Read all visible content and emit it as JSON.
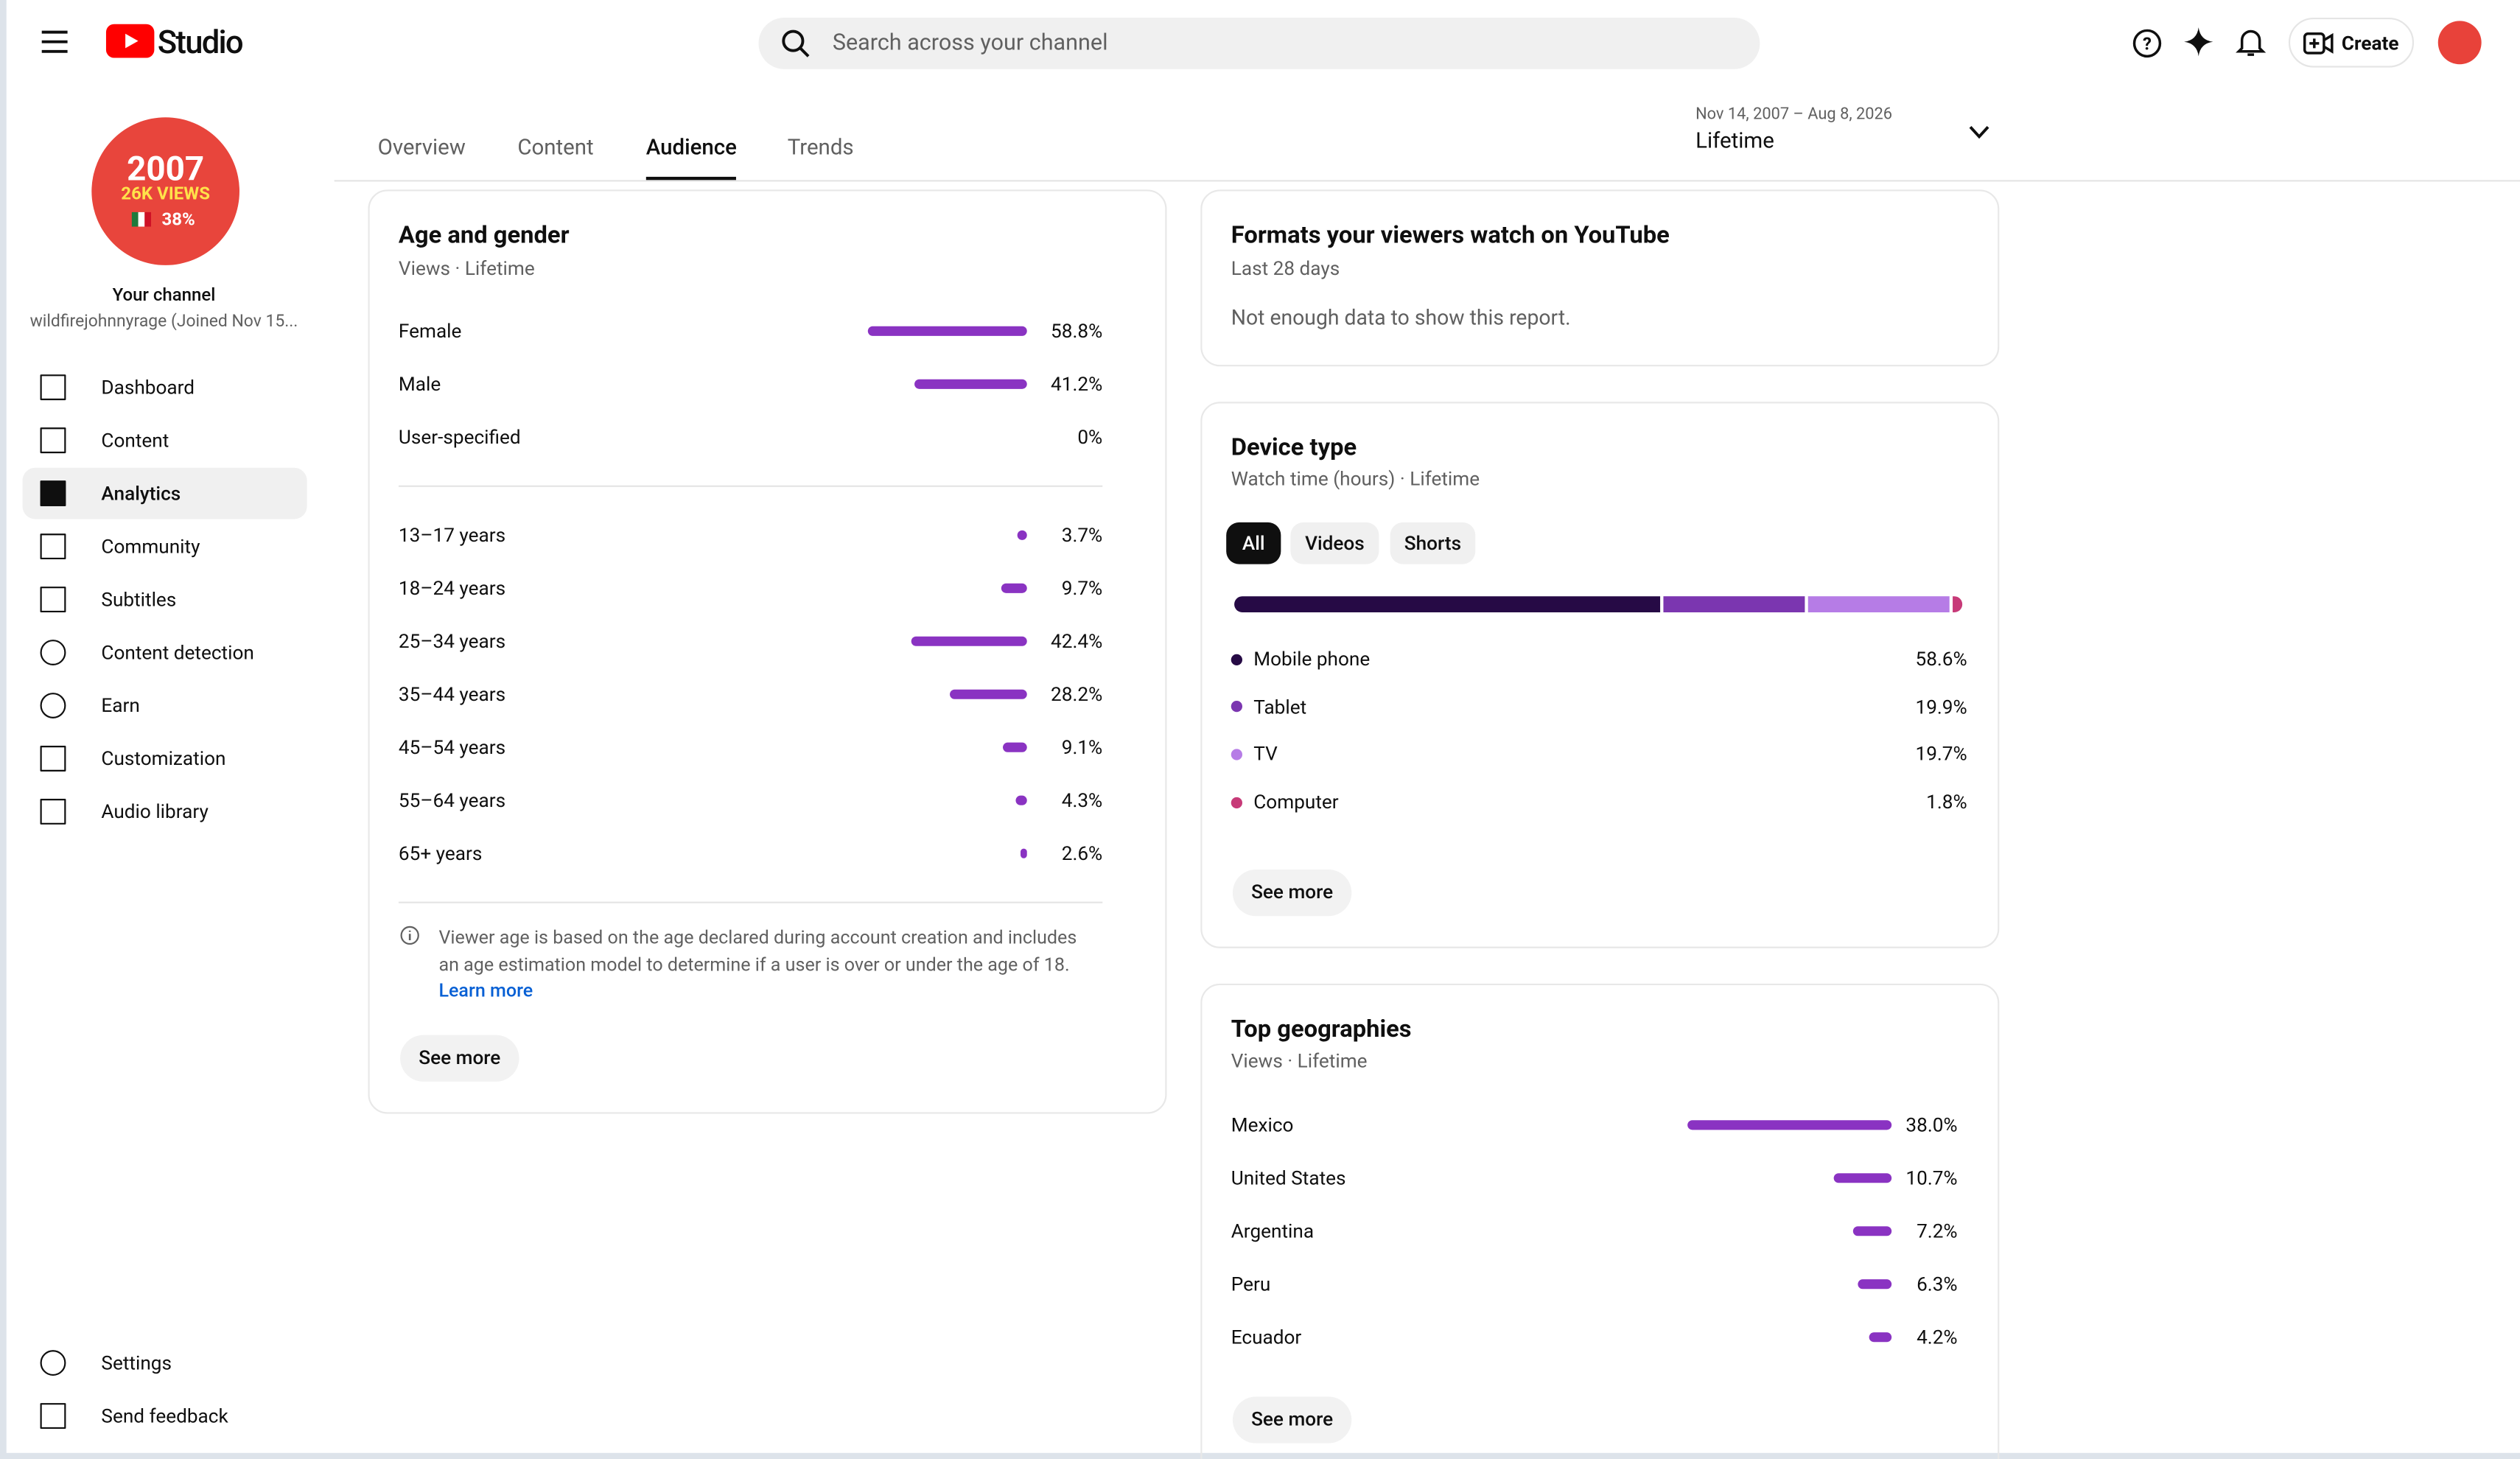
{
  "header": {
    "logo": "Studio",
    "search_placeholder": "Search across your channel",
    "create": "Create"
  },
  "sidebar": {
    "avatar_year": "2007",
    "avatar_views": "26K VIEWS",
    "avatar_share": "38%",
    "channel_label": "Your channel",
    "channel_name": "wildfirejohnnyrage (Joined Nov 15...",
    "nav": [
      "Dashboard",
      "Content",
      "Analytics",
      "Community",
      "Subtitles",
      "Content detection",
      "Earn",
      "Customization",
      "Audio library"
    ],
    "selected": 2,
    "footer": [
      "Settings",
      "Send feedback"
    ]
  },
  "tabs": {
    "items": [
      "Overview",
      "Content",
      "Audience",
      "Trends"
    ],
    "selected": 2
  },
  "date_range": {
    "range": "Nov 14, 2007 – Aug 8, 2026",
    "label": "Lifetime"
  },
  "age_gender": {
    "title": "Age and gender",
    "subtitle": "Views · Lifetime",
    "color": "#8a33c2",
    "gender": {
      "labels": [
        "Female",
        "Male",
        "User-specified"
      ],
      "values": [
        58.8,
        41.2,
        0
      ],
      "value_labels": [
        "58.8%",
        "41.2%",
        "0%"
      ]
    },
    "age": {
      "labels": [
        "13–17 years",
        "18–24 years",
        "25–34 years",
        "35–44 years",
        "45–54 years",
        "55–64 years",
        "65+ years"
      ],
      "values": [
        3.7,
        9.7,
        42.4,
        28.2,
        9.1,
        4.3,
        2.6
      ],
      "value_labels": [
        "3.7%",
        "9.7%",
        "42.4%",
        "28.2%",
        "9.1%",
        "4.3%",
        "2.6%"
      ]
    },
    "note": [
      "Viewer age is based on the age declared during account creation and includes",
      "an age estimation model to determine if a user is over or under the age of 18."
    ],
    "link": "Learn more",
    "button": "See more"
  },
  "formats": {
    "title": "Formats your viewers watch on YouTube",
    "subtitle": "Last 28 days",
    "message": "Not enough data to show this report."
  },
  "device_type": {
    "title": "Device type",
    "subtitle": "Watch time (hours) · Lifetime",
    "chips": [
      "All",
      "Videos",
      "Shorts"
    ],
    "selected": 0,
    "series": [
      {
        "name": "Mobile phone",
        "color": "#260a45",
        "values": [
          58.6
        ],
        "value_labels": [
          "58.6%"
        ]
      },
      {
        "name": "Tablet",
        "color": "#7b36b0",
        "values": [
          19.9
        ],
        "value_labels": [
          "19.9%"
        ]
      },
      {
        "name": "TV",
        "color": "#b67ce6",
        "values": [
          19.7
        ],
        "value_labels": [
          "19.7%"
        ]
      },
      {
        "name": "Computer",
        "color": "#c73a78",
        "values": [
          1.8
        ],
        "value_labels": [
          "1.8%"
        ]
      }
    ],
    "button": "See more"
  },
  "top_geographies": {
    "title": "Top geographies",
    "subtitle": "Views · Lifetime",
    "color": "#8a33c2",
    "labels": [
      "Mexico",
      "United States",
      "Argentina",
      "Peru",
      "Ecuador"
    ],
    "values": [
      38.0,
      10.7,
      7.2,
      6.3,
      4.2
    ],
    "value_labels": [
      "38.0%",
      "10.7%",
      "7.2%",
      "6.3%",
      "4.2%"
    ],
    "button": "See more"
  }
}
